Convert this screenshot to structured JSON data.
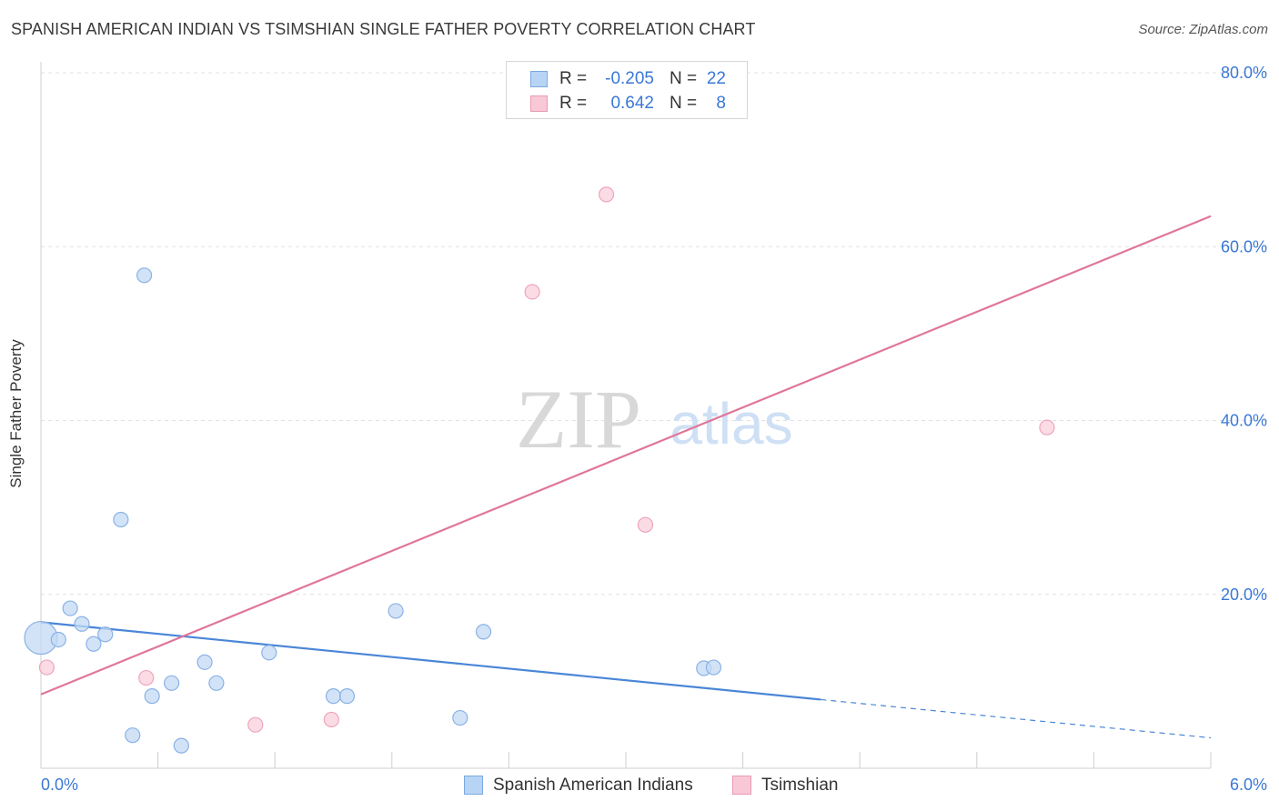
{
  "header": {
    "title": "SPANISH AMERICAN INDIAN VS TSIMSHIAN SINGLE FATHER POVERTY CORRELATION CHART",
    "source": "Source: ZipAtlas.com"
  },
  "watermark": {
    "zip": "ZIP",
    "atlas": "atlas"
  },
  "legend": {
    "rows": [
      {
        "r_label": "R =",
        "r_value": "-0.205",
        "n_label": "N =",
        "n_value": "22",
        "color": "#b8d4f5",
        "border": "#7aa8e0"
      },
      {
        "r_label": "R =",
        "r_value": "0.642",
        "n_label": "N =",
        "n_value": "8",
        "color": "#f9c8d6",
        "border": "#e89ab2"
      }
    ]
  },
  "bottom_legend": [
    {
      "label": "Spanish American Indians",
      "color": "#b8d4f5",
      "border": "#7aa8e0"
    },
    {
      "label": "Tsimshian",
      "color": "#f9c8d6",
      "border": "#e89ab2"
    }
  ],
  "chart_data": {
    "type": "scatter",
    "title": "SPANISH AMERICAN INDIAN VS TSIMSHIAN SINGLE FATHER POVERTY CORRELATION CHART",
    "xlabel": "",
    "ylabel": "Single Father Poverty",
    "xlim": [
      0,
      6
    ],
    "ylim": [
      0,
      80
    ],
    "x_tick_labels": [
      "0.0%",
      "6.0%"
    ],
    "y_ticks": [
      20,
      40,
      60,
      80
    ],
    "y_tick_labels": [
      "20.0%",
      "40.0%",
      "60.0%",
      "80.0%"
    ],
    "grid": true,
    "series": [
      {
        "name": "Spanish American Indians",
        "color": "#4a86d8",
        "fill": "#c3d9f4",
        "stroke": "#8ab2e6",
        "points": [
          {
            "x": 0.0,
            "y": 15.0,
            "big": true
          },
          {
            "x": 0.09,
            "y": 14.8
          },
          {
            "x": 0.15,
            "y": 18.4
          },
          {
            "x": 0.21,
            "y": 16.6
          },
          {
            "x": 0.27,
            "y": 14.3
          },
          {
            "x": 0.33,
            "y": 15.4
          },
          {
            "x": 0.41,
            "y": 28.6
          },
          {
            "x": 0.47,
            "y": 3.8
          },
          {
            "x": 0.53,
            "y": 56.7
          },
          {
            "x": 0.57,
            "y": 8.3
          },
          {
            "x": 0.67,
            "y": 9.8
          },
          {
            "x": 0.72,
            "y": 2.6
          },
          {
            "x": 0.84,
            "y": 12.2
          },
          {
            "x": 0.9,
            "y": 9.8
          },
          {
            "x": 1.17,
            "y": 13.3
          },
          {
            "x": 1.5,
            "y": 8.3
          },
          {
            "x": 1.57,
            "y": 8.3
          },
          {
            "x": 1.82,
            "y": 18.1
          },
          {
            "x": 2.15,
            "y": 5.8
          },
          {
            "x": 2.27,
            "y": 15.7
          },
          {
            "x": 3.4,
            "y": 11.5
          },
          {
            "x": 3.45,
            "y": 11.6
          }
        ],
        "trend": {
          "x0": 0.0,
          "y0": 16.8,
          "x1": 4.0,
          "y1": 7.9,
          "x_dash_end": 6.0,
          "y_dash_end": 3.5
        }
      },
      {
        "name": "Tsimshian",
        "color": "#e0769a",
        "fill": "#fad0dc",
        "stroke": "#eea5bd",
        "points": [
          {
            "x": 0.03,
            "y": 11.6
          },
          {
            "x": 0.54,
            "y": 10.4
          },
          {
            "x": 1.1,
            "y": 5.0
          },
          {
            "x": 1.49,
            "y": 5.6
          },
          {
            "x": 2.52,
            "y": 54.8
          },
          {
            "x": 2.9,
            "y": 66.0
          },
          {
            "x": 3.1,
            "y": 28.0
          },
          {
            "x": 5.16,
            "y": 39.2
          }
        ],
        "trend": {
          "x0": 0.0,
          "y0": 8.5,
          "x1": 6.0,
          "y1": 63.5
        }
      }
    ]
  }
}
